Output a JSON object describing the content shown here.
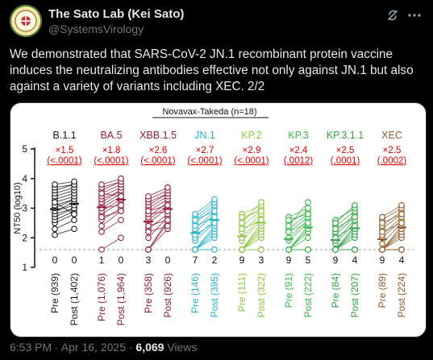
{
  "author": {
    "display_name": "The Sato Lab (Kei Sato)",
    "handle": "@SystemsVirology"
  },
  "tweet": {
    "text": "We demonstrated that SARS-CoV-2 JN.1 recombinant protein vaccine induces the neutralizing antibodies effective not only against JN.1 but also against a variety of variants including XEC. 2/2",
    "time": "6:53 PM · Apr 16, 2025 · ",
    "views_count": "6,069",
    "views_label": " Views"
  },
  "icons": [
    "avatar-seal",
    "grok-icon",
    "more-icon"
  ],
  "chart_data": {
    "type": "scatter",
    "title": "Novavax-Takeda (n=18)",
    "ylabel": "NT50 (log10)",
    "ylim": [
      1,
      5
    ],
    "yticks": [
      "1",
      "2",
      "3",
      "4",
      "5"
    ],
    "detection_limit": 1.6,
    "variants": [
      {
        "name": "B.1.1",
        "color": "#1a1a1a",
        "fold": "×1.5",
        "p": "(<.0001)",
        "n_below": [
          "0",
          "0"
        ],
        "pre_label": "Pre (939)",
        "post_label": "Post (1,402)",
        "pre_gmt": 2.97,
        "post_gmt": 3.15
      },
      {
        "name": "BA.5",
        "color": "#8b1e3f",
        "fold": "×1.8",
        "p": "(<.0001)",
        "n_below": [
          "1",
          "0"
        ],
        "pre_label": "Pre (1,076)",
        "post_label": "Post (1,964)",
        "pre_gmt": 3.03,
        "post_gmt": 3.29
      },
      {
        "name": "XBB.1.5",
        "color": "#8e1b3b",
        "fold": "×2.6",
        "p": "(<.0001)",
        "n_below": [
          "3",
          "0"
        ],
        "pre_label": "Pre (358)",
        "post_label": "Post (926)",
        "pre_gmt": 2.55,
        "post_gmt": 2.97
      },
      {
        "name": "JN.1",
        "color": "#26b3c4",
        "fold": "×2.7",
        "p": "(<.0001)",
        "n_below": [
          "7",
          "2"
        ],
        "pre_label": "Pre (146)",
        "post_label": "Post (395)",
        "pre_gmt": 2.16,
        "post_gmt": 2.6
      },
      {
        "name": "KP.2",
        "color": "#8cc63f",
        "fold": "×2.9",
        "p": "(<.0001)",
        "n_below": [
          "9",
          "3"
        ],
        "pre_label": "Pre (111)",
        "post_label": "Post (322)",
        "pre_gmt": 2.05,
        "post_gmt": 2.51
      },
      {
        "name": "KP.3",
        "color": "#39b54a",
        "fold": "×2.4",
        "p": "(.0012)",
        "n_below": [
          "9",
          "5"
        ],
        "pre_label": "Pre (91)",
        "post_label": "Post (222)",
        "pre_gmt": 1.96,
        "post_gmt": 2.35
      },
      {
        "name": "KP.3.1.1",
        "color": "#2ea043",
        "fold": "×2.5",
        "p": "(.0001)",
        "n_below": [
          "9",
          "4"
        ],
        "pre_label": "Pre (84)",
        "post_label": "Post (207)",
        "pre_gmt": 1.92,
        "post_gmt": 2.32
      },
      {
        "name": "XEC",
        "color": "#8b5a2b",
        "fold": "×2.5",
        "p": "(.0002)",
        "n_below": [
          "9",
          "4"
        ],
        "pre_label": "Pre (89)",
        "post_label": "Post (224)",
        "pre_gmt": 1.95,
        "post_gmt": 2.35
      }
    ],
    "pairs": [
      [
        [
          2.1,
          2.3
        ],
        [
          2.3,
          2.6
        ],
        [
          2.5,
          2.8
        ],
        [
          2.6,
          2.9
        ],
        [
          2.7,
          3.0
        ],
        [
          2.8,
          3.0
        ],
        [
          2.9,
          3.1
        ],
        [
          2.9,
          3.2
        ],
        [
          3.0,
          3.3
        ],
        [
          3.1,
          3.3
        ],
        [
          3.2,
          3.4
        ],
        [
          3.3,
          3.5
        ],
        [
          3.4,
          3.6
        ],
        [
          3.5,
          3.7
        ],
        [
          3.6,
          3.8
        ],
        [
          3.7,
          3.8
        ],
        [
          3.8,
          3.9
        ],
        [
          3.2,
          2.8
        ]
      ],
      [
        [
          1.6,
          2.0
        ],
        [
          2.2,
          2.6
        ],
        [
          2.4,
          2.9
        ],
        [
          2.6,
          3.0
        ],
        [
          2.8,
          3.2
        ],
        [
          2.9,
          3.3
        ],
        [
          3.0,
          3.4
        ],
        [
          3.1,
          3.5
        ],
        [
          3.2,
          3.6
        ],
        [
          3.3,
          3.6
        ],
        [
          3.4,
          3.7
        ],
        [
          3.5,
          3.8
        ],
        [
          3.6,
          3.9
        ],
        [
          3.7,
          3.9
        ],
        [
          3.8,
          4.0
        ],
        [
          3.0,
          3.1
        ],
        [
          2.7,
          2.9
        ],
        [
          3.5,
          3.4
        ]
      ],
      [
        [
          1.6,
          2.3
        ],
        [
          1.6,
          2.5
        ],
        [
          1.6,
          2.6
        ],
        [
          2.0,
          2.7
        ],
        [
          2.3,
          2.8
        ],
        [
          2.5,
          3.0
        ],
        [
          2.6,
          3.1
        ],
        [
          2.7,
          3.2
        ],
        [
          2.9,
          3.3
        ],
        [
          3.0,
          3.4
        ],
        [
          3.1,
          3.5
        ],
        [
          3.2,
          3.5
        ],
        [
          3.3,
          3.6
        ],
        [
          3.4,
          3.7
        ],
        [
          2.8,
          2.9
        ],
        [
          2.2,
          2.4
        ],
        [
          2.4,
          2.6
        ],
        [
          2.9,
          3.1
        ]
      ],
      [
        [
          1.6,
          1.6
        ],
        [
          1.6,
          1.6
        ],
        [
          1.6,
          2.0
        ],
        [
          1.6,
          2.1
        ],
        [
          1.6,
          2.2
        ],
        [
          1.6,
          2.3
        ],
        [
          1.6,
          2.4
        ],
        [
          1.9,
          2.5
        ],
        [
          2.0,
          2.6
        ],
        [
          2.2,
          2.8
        ],
        [
          2.3,
          2.9
        ],
        [
          2.5,
          3.0
        ],
        [
          2.6,
          3.1
        ],
        [
          2.7,
          3.2
        ],
        [
          2.8,
          3.3
        ],
        [
          2.4,
          2.7
        ],
        [
          2.1,
          2.5
        ],
        [
          2.6,
          2.9
        ]
      ],
      [
        [
          1.6,
          1.6
        ],
        [
          1.6,
          1.6
        ],
        [
          1.6,
          1.6
        ],
        [
          1.6,
          2.0
        ],
        [
          1.6,
          2.1
        ],
        [
          1.6,
          2.2
        ],
        [
          1.6,
          2.3
        ],
        [
          1.6,
          2.4
        ],
        [
          1.6,
          2.5
        ],
        [
          1.9,
          2.6
        ],
        [
          2.0,
          2.7
        ],
        [
          2.2,
          2.8
        ],
        [
          2.4,
          2.9
        ],
        [
          2.6,
          3.0
        ],
        [
          2.8,
          3.1
        ],
        [
          2.5,
          3.2
        ],
        [
          2.3,
          2.6
        ],
        [
          2.7,
          2.9
        ]
      ],
      [
        [
          1.6,
          1.6
        ],
        [
          1.6,
          1.6
        ],
        [
          1.6,
          1.6
        ],
        [
          1.6,
          1.6
        ],
        [
          1.6,
          1.6
        ],
        [
          1.6,
          2.0
        ],
        [
          1.6,
          2.2
        ],
        [
          1.6,
          2.3
        ],
        [
          1.6,
          2.4
        ],
        [
          1.9,
          2.5
        ],
        [
          2.0,
          2.6
        ],
        [
          2.2,
          2.7
        ],
        [
          2.3,
          2.8
        ],
        [
          2.5,
          2.9
        ],
        [
          2.7,
          3.0
        ],
        [
          2.4,
          3.2
        ],
        [
          2.2,
          2.5
        ],
        [
          2.6,
          2.8
        ]
      ],
      [
        [
          1.6,
          1.6
        ],
        [
          1.6,
          1.6
        ],
        [
          1.6,
          1.6
        ],
        [
          1.6,
          1.6
        ],
        [
          1.6,
          2.0
        ],
        [
          1.6,
          2.1
        ],
        [
          1.6,
          2.2
        ],
        [
          1.6,
          2.3
        ],
        [
          1.6,
          2.4
        ],
        [
          1.8,
          2.5
        ],
        [
          1.9,
          2.6
        ],
        [
          2.1,
          2.7
        ],
        [
          2.2,
          2.8
        ],
        [
          2.4,
          2.9
        ],
        [
          2.6,
          3.0
        ],
        [
          2.5,
          3.1
        ],
        [
          2.0,
          2.4
        ],
        [
          2.3,
          2.7
        ]
      ],
      [
        [
          1.6,
          1.6
        ],
        [
          1.6,
          1.6
        ],
        [
          1.6,
          1.6
        ],
        [
          1.6,
          1.6
        ],
        [
          1.6,
          2.0
        ],
        [
          1.6,
          2.1
        ],
        [
          1.6,
          2.2
        ],
        [
          1.6,
          2.3
        ],
        [
          1.6,
          2.4
        ],
        [
          1.8,
          2.5
        ],
        [
          2.0,
          2.6
        ],
        [
          2.1,
          2.7
        ],
        [
          2.3,
          2.8
        ],
        [
          2.4,
          2.9
        ],
        [
          2.6,
          3.0
        ],
        [
          2.7,
          3.1
        ],
        [
          2.2,
          2.5
        ],
        [
          2.5,
          2.8
        ]
      ]
    ]
  }
}
